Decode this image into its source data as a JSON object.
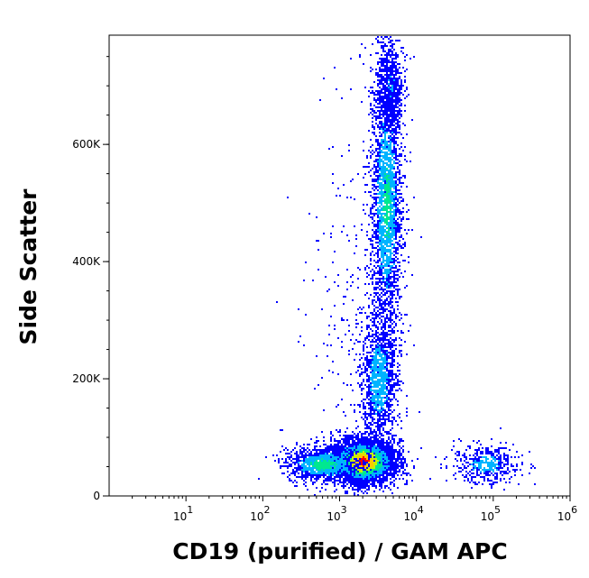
{
  "chart_data": {
    "type": "scatter",
    "subtype": "flow-cytometry-density-dot-plot",
    "xlabel": "CD19 (purified) / GAM APC",
    "ylabel": "Side Scatter",
    "x_scale": "log",
    "xlim": [
      1,
      1000000
    ],
    "ylim": [
      0,
      786432
    ],
    "x_ticks": [
      {
        "value": 10,
        "base": "10",
        "exp": "1"
      },
      {
        "value": 100,
        "base": "10",
        "exp": "2"
      },
      {
        "value": 1000,
        "base": "10",
        "exp": "3"
      },
      {
        "value": 10000,
        "base": "10",
        "exp": "4"
      },
      {
        "value": 100000,
        "base": "10",
        "exp": "5"
      },
      {
        "value": 1000000,
        "base": "10",
        "exp": "6"
      }
    ],
    "y_ticks": [
      {
        "value": 0,
        "label": "0"
      },
      {
        "value": 200000,
        "label": "200K"
      },
      {
        "value": 400000,
        "label": "400K"
      },
      {
        "value": 600000,
        "label": "600K"
      }
    ],
    "grid": false,
    "legend": "none",
    "density_colors": [
      "#0000ff",
      "#00b4ff",
      "#00e890",
      "#c8f000",
      "#ffc800",
      "#ff0000"
    ],
    "populations": [
      {
        "x_center": 2000,
        "y_center": 60000,
        "x_spread_decades": 0.2,
        "y_spread": 18000,
        "count": 5500,
        "peak_density": 1.0
      },
      {
        "x_center": 600,
        "y_center": 55000,
        "x_spread_decades": 0.25,
        "y_spread": 15000,
        "count": 1100,
        "peak_density": 0.5
      },
      {
        "x_center": 4000,
        "y_center": 500000,
        "x_spread_decades": 0.1,
        "y_spread": 120000,
        "count": 3800,
        "peak_density": 0.45
      },
      {
        "x_center": 3200,
        "y_center": 200000,
        "x_spread_decades": 0.12,
        "y_spread": 60000,
        "count": 1300,
        "peak_density": 0.35
      },
      {
        "x_center": 80000,
        "y_center": 55000,
        "x_spread_decades": 0.22,
        "y_spread": 16000,
        "count": 500,
        "peak_density": 0.3
      },
      {
        "x_center": 4500,
        "y_center": 700000,
        "x_spread_decades": 0.08,
        "y_spread": 40000,
        "count": 700,
        "peak_density": 0.2
      },
      {
        "x_center": 1500,
        "y_center": 300000,
        "x_spread_decades": 0.35,
        "y_spread": 200000,
        "count": 300,
        "peak_density": 0.05
      }
    ]
  }
}
